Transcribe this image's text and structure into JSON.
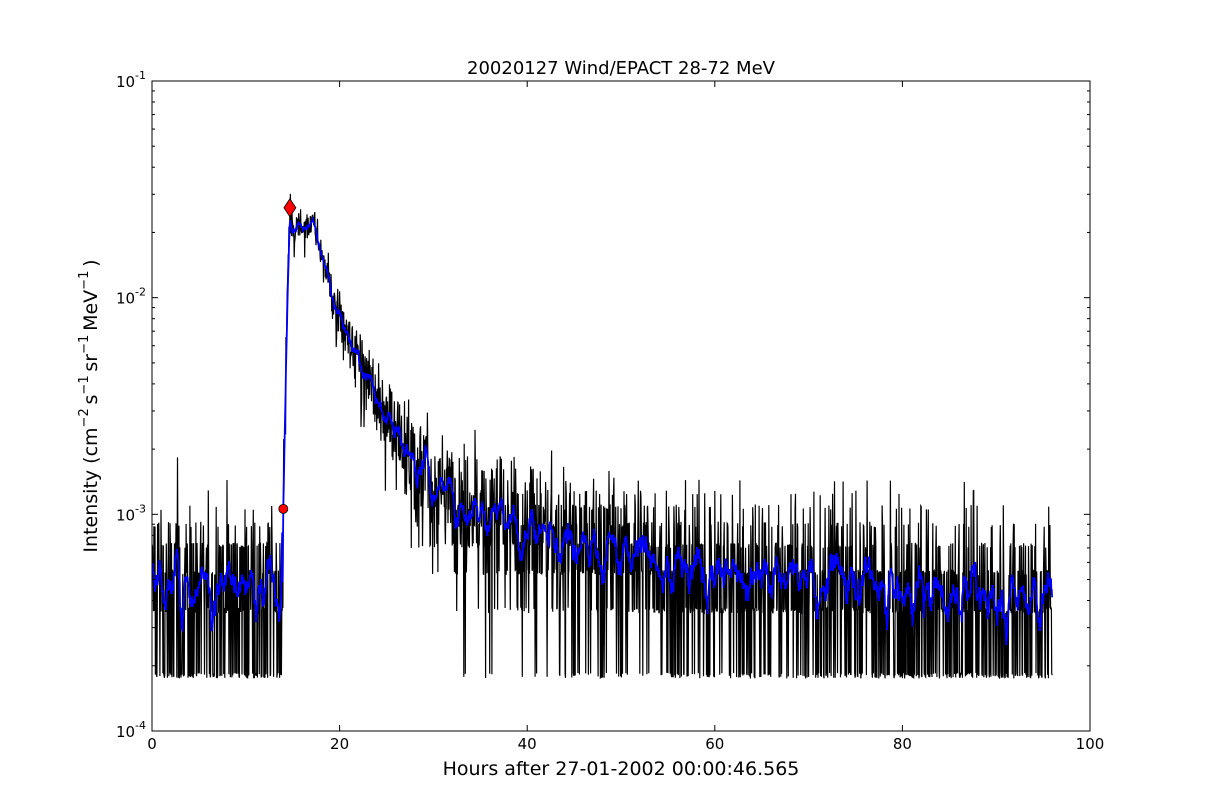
{
  "chart_data": {
    "type": "line",
    "title": "20020127 Wind/EPACT 28-72 MeV",
    "xlabel": "Hours after 27-01-2002 00:00:46.565",
    "ylabel_main": "Intensity (cm",
    "ylabel_parts": [
      {
        "text": "Intensity (cm",
        "sup": "−2"
      },
      {
        "text": "s",
        "sup": "−1"
      },
      {
        "text": "sr",
        "sup": "−1"
      },
      {
        "text": "MeV",
        "sup": "−1"
      },
      {
        "text": ")",
        "sup": ""
      }
    ],
    "xlim": [
      0,
      100
    ],
    "ylim": [
      0.0001,
      0.1
    ],
    "yscale": "log",
    "xticks": [
      "0",
      "20",
      "40",
      "60",
      "80",
      "100"
    ],
    "yticks": [
      {
        "base": "10",
        "exp": "-4",
        "value": 0.0001
      },
      {
        "base": "10",
        "exp": "-3",
        "value": 0.001
      },
      {
        "base": "10",
        "exp": "-2",
        "value": 0.01
      },
      {
        "base": "10",
        "exp": "-1",
        "value": 0.1
      }
    ],
    "grid": false,
    "series": [
      {
        "name": "raw intensity",
        "color": "#000000",
        "count_quantum": 0.00018,
        "sample_step_hours": 0.04,
        "x_range": [
          0,
          96
        ]
      },
      {
        "name": "smoothed intensity",
        "color": "#0000ff",
        "x": [
          0,
          5,
          10,
          13.9,
          14.0,
          14.3,
          14.5,
          14.7,
          15.2,
          15.6,
          16.2,
          17.0,
          17.5,
          18.2,
          19.0,
          20.0,
          21.0,
          22.0,
          24.0,
          26.0,
          28.0,
          30.0,
          32.0,
          35.0,
          40.0,
          45.0,
          50.0,
          55.0,
          60.0,
          70.0,
          80.0,
          90.0,
          96.0
        ],
        "y": [
          0.0004,
          0.0004,
          0.0004,
          0.0004,
          0.00106,
          0.005,
          0.012,
          0.023,
          0.018,
          0.02,
          0.019,
          0.021,
          0.018,
          0.014,
          0.01,
          0.007,
          0.0055,
          0.0045,
          0.0033,
          0.0023,
          0.0016,
          0.0013,
          0.0011,
          0.0009,
          0.00075,
          0.0007,
          0.00065,
          0.00055,
          0.0005,
          0.00045,
          0.0004,
          0.00038,
          0.00034
        ]
      }
    ],
    "markers": [
      {
        "name": "onset",
        "x": 14.0,
        "y": 0.00106,
        "shape": "circle",
        "color": "#ff0000"
      },
      {
        "name": "peak",
        "x": 14.7,
        "y": 0.026,
        "shape": "diamond",
        "color": "#ff0000"
      }
    ]
  }
}
